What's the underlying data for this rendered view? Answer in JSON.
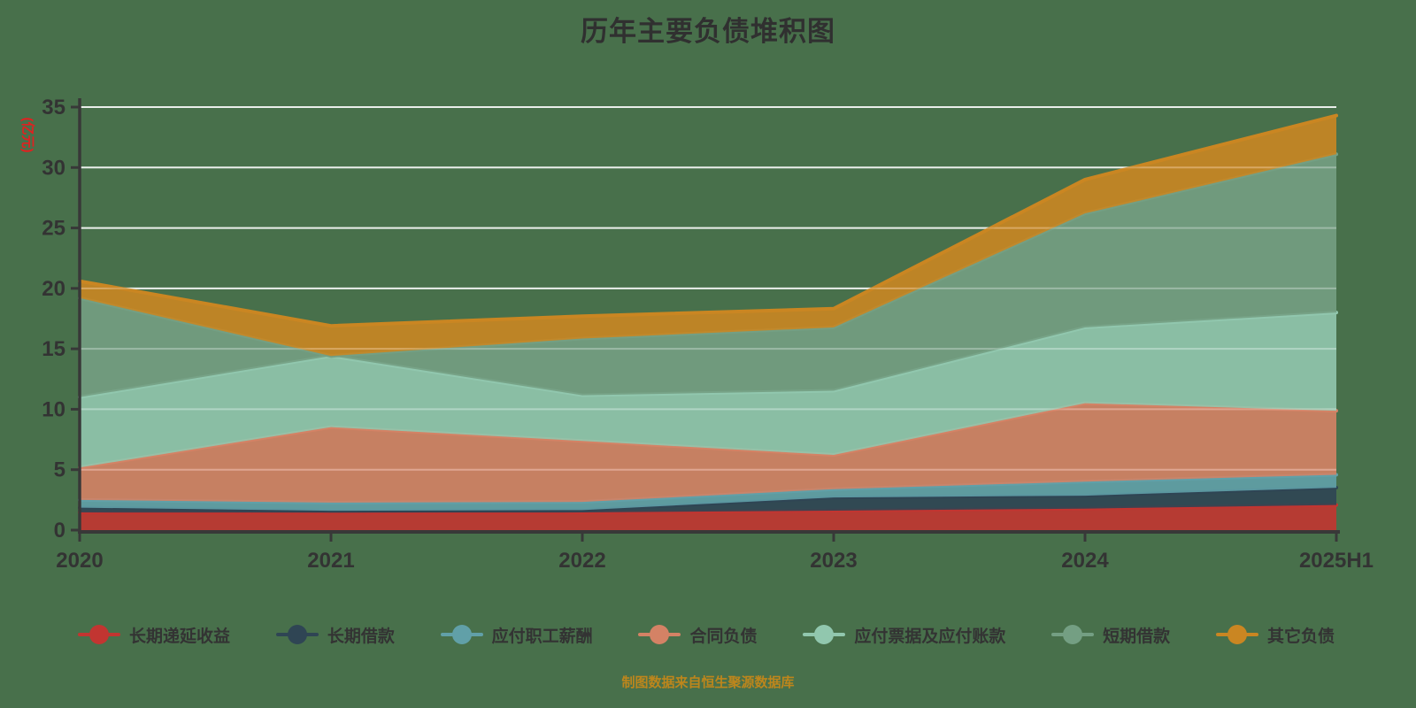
{
  "title": "历年主要负债堆积图",
  "source_note": "制图数据来自恒生聚源数据库",
  "y_axis": {
    "name": "(亿元)",
    "ticks": [
      0,
      5,
      10,
      15,
      20,
      25,
      30,
      35
    ],
    "max": 35
  },
  "x_axis": {
    "categories": [
      "2020",
      "2021",
      "2022",
      "2023",
      "2024",
      "2025H1"
    ]
  },
  "colors": {
    "background": "#48704b",
    "axis": "#383838",
    "tick_text": "#333333",
    "title_text": "#303030",
    "y_name_text": "#e41f1f",
    "source_text": "#bd861c",
    "gridline": "#ffffff"
  },
  "chart_data": {
    "type": "area",
    "stacked": true,
    "title": "历年主要负债堆积图",
    "ylabel": "(亿元)",
    "xlabel": "",
    "ylim": [
      0,
      35
    ],
    "grid": true,
    "legend_position": "bottom",
    "categories": [
      "2020",
      "2021",
      "2022",
      "2023",
      "2024",
      "2025H1"
    ],
    "series": [
      {
        "name": "长期递延收益",
        "color": "#c23531",
        "values": [
          1.46,
          1.45,
          1.46,
          1.61,
          1.78,
          2.08
        ]
      },
      {
        "name": "长期借款",
        "color": "#2f4554",
        "values": [
          0.4,
          0.15,
          0.2,
          1.09,
          1.07,
          1.43
        ]
      },
      {
        "name": "应付职工薪酬",
        "color": "#61a0a8",
        "values": [
          0.64,
          0.68,
          0.67,
          0.69,
          1.16,
          1.07
        ]
      },
      {
        "name": "合同负债",
        "color": "#d48265",
        "values": [
          2.68,
          6.24,
          5.05,
          2.83,
          6.49,
          5.3
        ]
      },
      {
        "name": "应付票据及应付账款",
        "color": "#91c7ae",
        "values": [
          5.82,
          5.89,
          3.78,
          5.31,
          6.27,
          8.12
        ]
      },
      {
        "name": "短期借款",
        "color": "#749f83",
        "values": [
          8.2,
          0.0,
          4.69,
          5.24,
          9.43,
          13.1
        ]
      },
      {
        "name": "其它负债",
        "color": "#ca8622",
        "values": [
          1.4,
          2.49,
          1.85,
          1.55,
          2.8,
          3.2
        ]
      }
    ],
    "stack_totals": [
      20.6,
      16.9,
      17.7,
      18.32,
      29.0,
      34.3
    ]
  }
}
